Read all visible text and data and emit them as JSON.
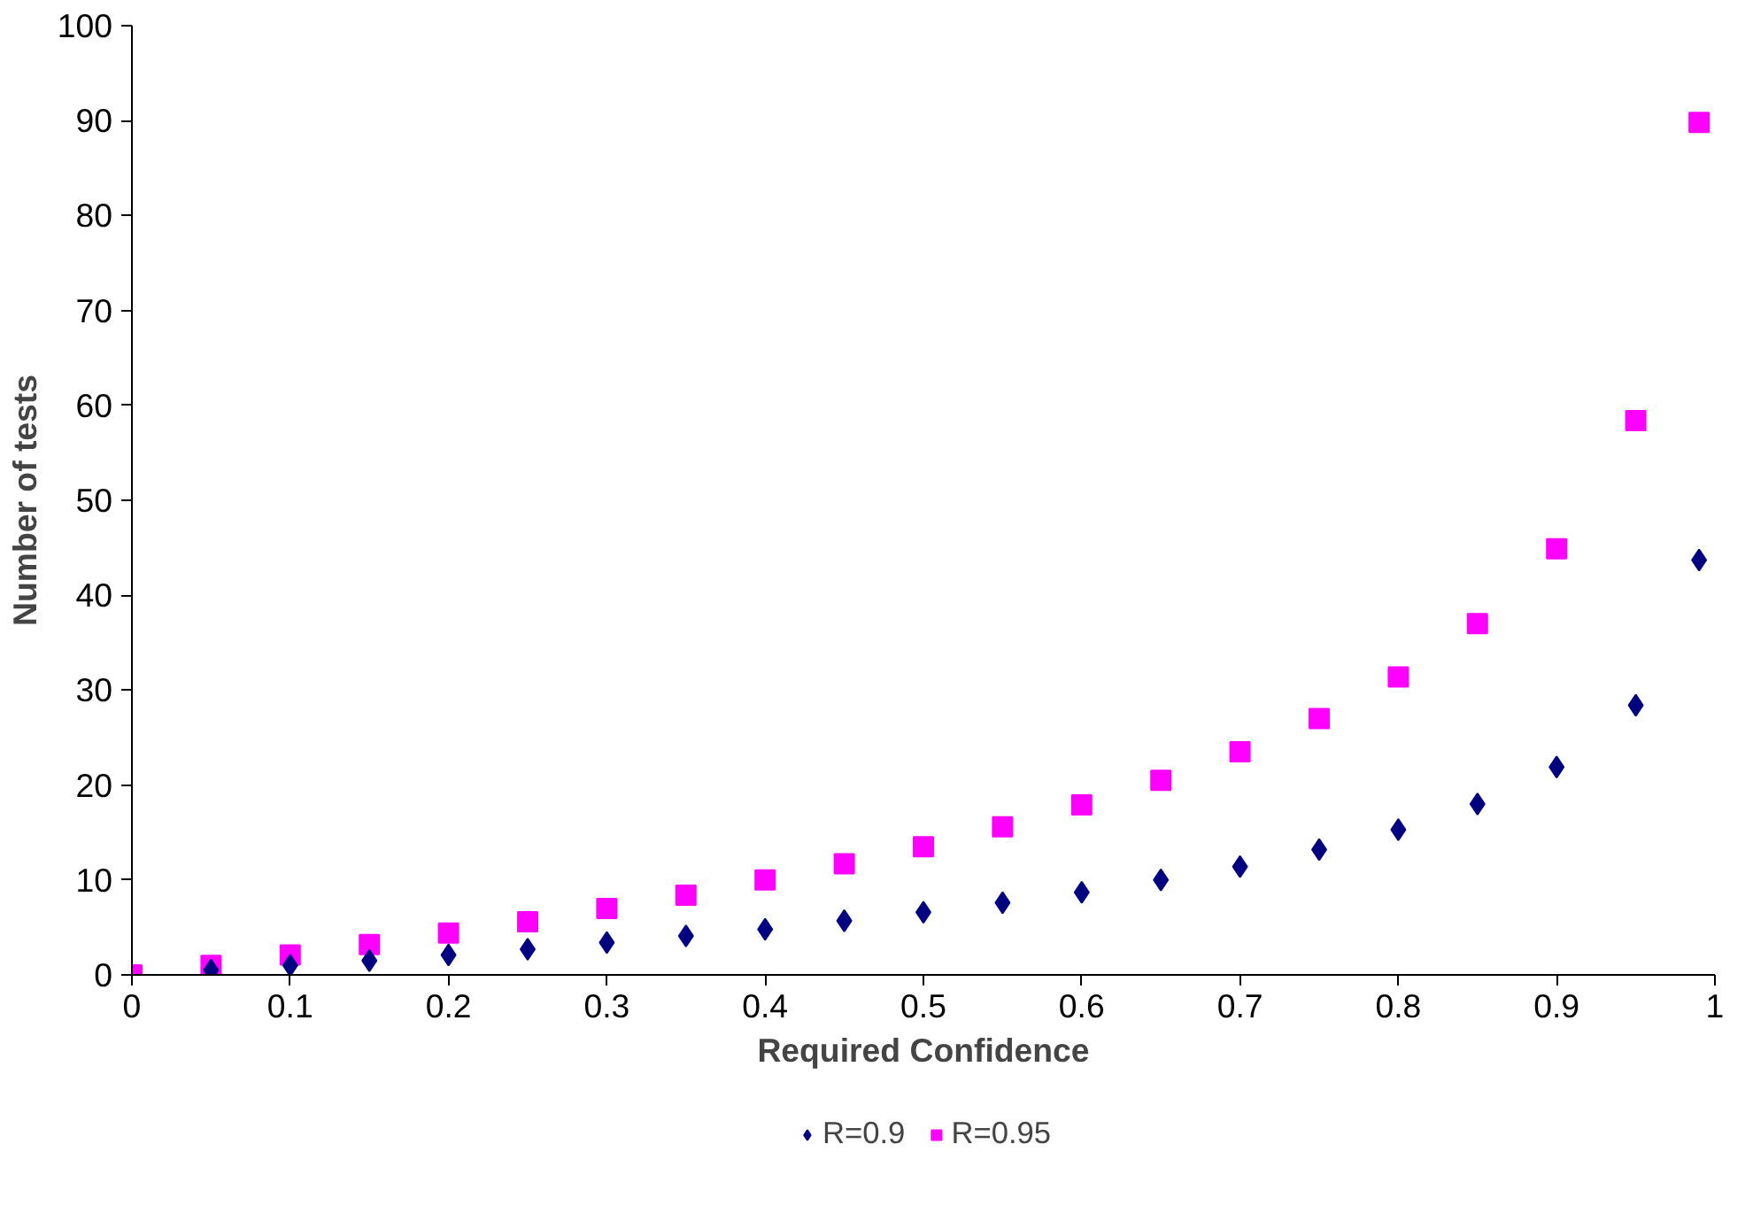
{
  "chart_data": {
    "type": "scatter",
    "xlabel": "Required Confidence",
    "ylabel": "Number of tests",
    "x": [
      0,
      0.05,
      0.1,
      0.15,
      0.2,
      0.25,
      0.3,
      0.35,
      0.4,
      0.45,
      0.5,
      0.55,
      0.6,
      0.65,
      0.7,
      0.75,
      0.8,
      0.85,
      0.9,
      0.95,
      0.99
    ],
    "series": [
      {
        "name": "R=0.9",
        "color": "#000080",
        "marker": "diamond",
        "values": [
          null,
          0.5,
          1.0,
          1.5,
          2.1,
          2.7,
          3.4,
          4.1,
          4.8,
          5.7,
          6.6,
          7.6,
          8.7,
          10.0,
          11.4,
          13.2,
          15.3,
          18.0,
          21.9,
          28.4,
          43.7
        ]
      },
      {
        "name": "R=0.95",
        "color": "#ff00ff",
        "marker": "square",
        "values": [
          0,
          1.0,
          2.1,
          3.2,
          4.4,
          5.6,
          7.0,
          8.4,
          10.0,
          11.7,
          13.5,
          15.6,
          17.9,
          20.5,
          23.5,
          27.0,
          31.4,
          37.0,
          44.9,
          58.4,
          89.8
        ]
      }
    ],
    "xlim": [
      0,
      1
    ],
    "ylim": [
      0,
      100
    ],
    "xticks": [
      0,
      0.1,
      0.2,
      0.3,
      0.4,
      0.5,
      0.6,
      0.7,
      0.8,
      0.9,
      1
    ],
    "yticks": [
      0,
      10,
      20,
      30,
      40,
      50,
      60,
      70,
      80,
      90,
      100
    ],
    "grid": false,
    "legend": "bottom"
  }
}
